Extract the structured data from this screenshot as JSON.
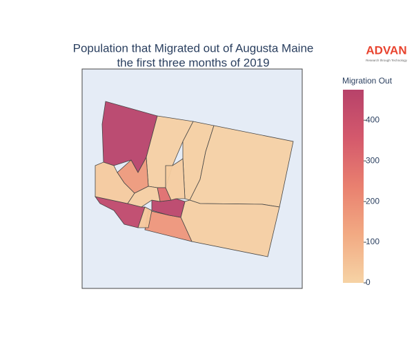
{
  "chart_data": {
    "type": "choropleth",
    "title": [
      "Population that Migrated out of Augusta Maine",
      "the first three months of 2019"
    ],
    "logo": {
      "name": "ADVAN",
      "tagline": "Research through Technology"
    },
    "colorbar_title": "Migration Out",
    "values": [
      470,
      8,
      10,
      5,
      12,
      165,
      175,
      440,
      455,
      290,
      25,
      35,
      12,
      20
    ],
    "zlim": [
      0,
      475
    ],
    "zticks": [
      0,
      100,
      200,
      300,
      400
    ],
    "colorscale": [
      "#f6d3a5",
      "#f2aa83",
      "#e9806f",
      "#d4596c",
      "#b7426a"
    ]
  }
}
